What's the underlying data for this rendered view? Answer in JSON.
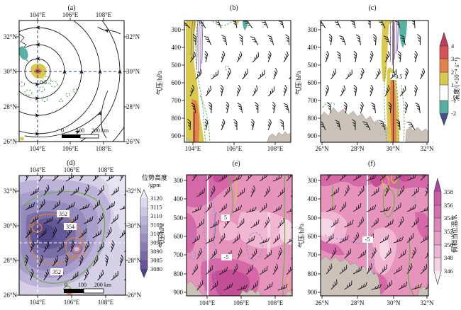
{
  "panels": {
    "a": {
      "title": "(a)",
      "lon_ticks": [
        "104°E",
        "106°E",
        "108°E"
      ],
      "lat_ticks": [
        "32°N",
        "30°N",
        "28°N",
        "26°N"
      ],
      "contour_label": "0.5",
      "scalebar": [
        "0",
        "100",
        "200 km"
      ]
    },
    "b": {
      "title": "(b)",
      "lon_ticks": [
        "104°E",
        "106°E",
        "108°E"
      ],
      "pressure_ticks": [
        "300",
        "400",
        "500",
        "600",
        "700",
        "800",
        "900"
      ],
      "ylabel": "气压/hPa"
    },
    "c": {
      "title": "(c)",
      "lat_ticks": [
        "26°N",
        "28°N",
        "30°N",
        "32°N"
      ],
      "pressure_ticks": [
        "300",
        "400",
        "500",
        "600",
        "700",
        "800",
        "900"
      ],
      "ylabel": "气压/hPa",
      "contour_label": "-0.5"
    },
    "d": {
      "title": "(d)",
      "lon_ticks": [
        "104°E",
        "106°E",
        "108°E"
      ],
      "lat_ticks": [
        "32°N",
        "30°N",
        "28°N",
        "26°N"
      ],
      "contour_labels": [
        "352",
        "354",
        "352"
      ],
      "scalebar": [
        "0",
        "100",
        "200 km"
      ],
      "colorbar": {
        "title": "位势高度",
        "unit": "/gpm",
        "ticks": [
          "3120",
          "3115",
          "3110",
          "3105",
          "3100",
          "3095",
          "3090",
          "3085",
          "3080"
        ],
        "colors": [
          "#efecf7",
          "#ded9ee",
          "#cdc7e3",
          "#bcb4d8",
          "#aba1cd",
          "#9a8ec1",
          "#897bb4",
          "#7868a7",
          "#675598",
          "#4f4387"
        ]
      }
    },
    "e": {
      "title": "(e)",
      "lon_ticks": [
        "104°E",
        "106°E",
        "108°E"
      ],
      "pressure_ticks": [
        "300",
        "400",
        "500",
        "600",
        "700",
        "800",
        "900"
      ],
      "ylabel": "气压/hPa",
      "contour_labels": [
        "5",
        "-5"
      ]
    },
    "f": {
      "title": "(f)",
      "lat_ticks": [
        "26°N",
        "28°N",
        "30°N",
        "32°N"
      ],
      "pressure_ticks": [
        "300",
        "400",
        "500",
        "600",
        "700",
        "800",
        "900"
      ],
      "ylabel": "气压/hPa",
      "contour_label": "-5",
      "colorbar": {
        "label": "假相当位温/K",
        "ticks": [
          "358",
          "356",
          "354",
          "352",
          "350",
          "348",
          "346"
        ],
        "colors": [
          "#a8489a",
          "#c95fa3",
          "#d371ad",
          "#dc86b9",
          "#e59fc7",
          "#edb6d4",
          "#f5d0e2",
          "#fbecf4"
        ]
      }
    }
  },
  "vorticity_colorbar": {
    "label": "涡度/(×10⁻⁴ s⁻¹)",
    "ticks": [
      "4",
      "3",
      "2",
      "1",
      "-1",
      "-2"
    ],
    "colors": [
      "#c23a5e",
      "#d95055",
      "#e3824a",
      "#d9c94f",
      "#ffffff",
      "#55b0a2",
      "#4a4d8e"
    ]
  },
  "chart_data": [
    {
      "id": "a",
      "type": "heatmap",
      "subtype": "streamline_map",
      "title": "(a)",
      "x_ticks": [
        "104°E",
        "106°E",
        "108°E"
      ],
      "y_ticks": [
        "26°N",
        "28°N",
        "30°N",
        "32°N"
      ],
      "dashed_crosshair": {
        "lon": "104°E",
        "lat": "30°N"
      },
      "vortex_center": {
        "lon": "104°E",
        "lat": "30°N"
      },
      "labeled_contour_values": [
        0.5
      ],
      "shading": "positive vorticity core (yellow/orange/red) at vortex; small negative (teal) patch to the northwest; dashed green weak contours scattered southeast",
      "scale_bar_km": [
        0,
        100,
        200
      ]
    },
    {
      "id": "b",
      "type": "heatmap",
      "subtype": "zonal_vertical_cross_section",
      "title": "(b)",
      "x_ticks": [
        "104°E",
        "106°E",
        "108°E"
      ],
      "y_label": "气压/hPa",
      "y_ticks": [
        300,
        400,
        500,
        600,
        700,
        800,
        900
      ],
      "y_axis_inverted": true,
      "shading_legend": "涡度/(×10⁻⁴ s⁻¹)",
      "features": [
        "positive vorticity column near 104°E (yellow) with orange core 650-900 hPa",
        "purple contour cluster near 104°E above 500 hPa",
        "small teal patch near 107°E at 300 hPa",
        "terrain mask lower right",
        "wind barbs throughout"
      ]
    },
    {
      "id": "c",
      "type": "heatmap",
      "subtype": "meridional_vertical_cross_section",
      "title": "(c)",
      "x_ticks": [
        "26°N",
        "28°N",
        "30°N",
        "32°N"
      ],
      "y_label": "气压/hPa",
      "y_ticks": [
        300,
        400,
        500,
        600,
        700,
        800,
        900
      ],
      "y_axis_inverted": true,
      "labeled_contour_values": [
        -0.5
      ],
      "shading_legend": "涡度/(×10⁻⁴ s⁻¹)",
      "colorbar_ticks": [
        4,
        3,
        2,
        1,
        -1,
        -2
      ],
      "features": [
        "positive vorticity column near 30°N with orange core below 550 hPa",
        "negative vorticity (teal) near 30.5°N between 300 and 450 hPa",
        "terrain mask on both flanks",
        "wind barbs throughout"
      ]
    },
    {
      "id": "d",
      "type": "heatmap",
      "subtype": "geopotential_height_map",
      "title": "(d)",
      "x_ticks": [
        "104°E",
        "106°E",
        "108°E"
      ],
      "y_ticks": [
        "26°N",
        "28°N",
        "30°N",
        "32°N"
      ],
      "colorbar": {
        "title": "位势高度/gpm",
        "ticks": [
          3120,
          3115,
          3110,
          3105,
          3100,
          3095,
          3090,
          3085,
          3080
        ]
      },
      "labeled_contour_values": [
        352,
        354,
        352
      ],
      "low_center": "minimum (~3080 gpm) near 105°E, 29°N",
      "dashed_crosshair": {
        "lon": "104°E",
        "lat": "29°N"
      },
      "scale_bar_km": [
        0,
        100,
        200
      ]
    },
    {
      "id": "e",
      "type": "heatmap",
      "subtype": "zonal_vertical_cross_section",
      "title": "(e)",
      "x_ticks": [
        "104°E",
        "106°E",
        "108°E"
      ],
      "y_label": "气压/hPa",
      "y_ticks": [
        300,
        400,
        500,
        600,
        700,
        800,
        900
      ],
      "y_axis_inverted": true,
      "labeled_contour_values": [
        5,
        -5
      ],
      "shading_legend": "假相当位温/K",
      "reference_line": "white vertical line near 104.5°E",
      "features": [
        "dark magenta theta-e maxima lower middle",
        "blue dashed contours labeled 5 and -5",
        "green and yellow contours",
        "terrain bumps along bottom"
      ]
    },
    {
      "id": "f",
      "type": "heatmap",
      "subtype": "meridional_vertical_cross_section",
      "title": "(f)",
      "x_ticks": [
        "26°N",
        "28°N",
        "30°N",
        "32°N"
      ],
      "y_label": "气压/hPa",
      "y_ticks": [
        300,
        400,
        500,
        600,
        700,
        800,
        900
      ],
      "y_axis_inverted": true,
      "labeled_contour_values": [
        -5
      ],
      "colorbar": {
        "title": "假相当位温/K",
        "ticks": [
          358,
          356,
          354,
          352,
          350,
          348,
          346
        ]
      },
      "reference_line": "white vertical line near 29.3°N",
      "features": [
        "large terrain mask bottom left",
        "green/yellow contour loops near 30°N aloft",
        "blue dashed contour labeled -5"
      ]
    }
  ]
}
